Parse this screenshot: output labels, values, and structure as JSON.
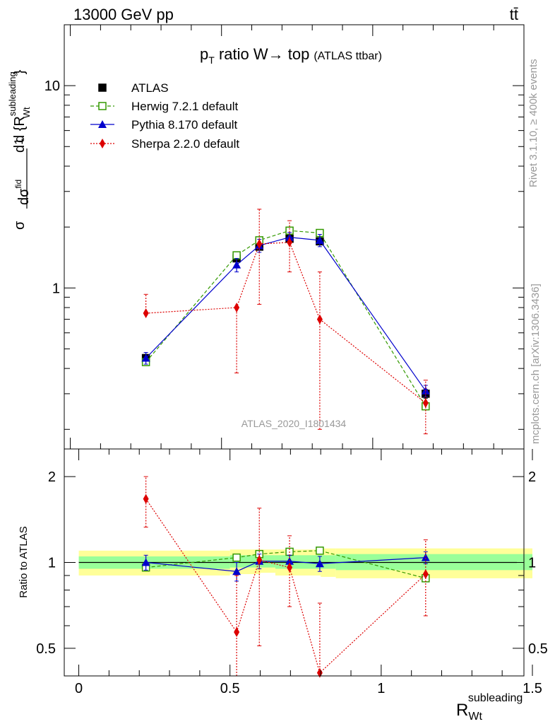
{
  "header": {
    "left": "13000 GeV pp",
    "right": "tt̄"
  },
  "side_text": {
    "rivet": "Rivet 3.1.10, ≥ 400k events",
    "mcplots": "mcplots.cern.ch [arXiv:1306.3436]"
  },
  "colors": {
    "atlas": "#000000",
    "herwig": "#339900",
    "pythia": "#0000cc",
    "sherpa": "#dd0000",
    "band_inner": "#99ff99",
    "band_outer": "#ffff99",
    "watermark": "#999999"
  },
  "chart_data": [
    {
      "type": "line",
      "title": "p_T ratio W→ top (ATLAS ttbar)",
      "title_main": "p",
      "title_sub": "T",
      "title_rest": " ratio W→ top",
      "title_small": "(ATLAS ttbar)",
      "analysis_label": "ATLAS_2020_I1801434",
      "ylabel": "1/σ dσ^fid / d{R_Wt^subleading}",
      "ylabel_parts": {
        "frac": "1",
        "sigma": "σ",
        "d": "d",
        "dsigma": "dσ",
        "fid": "fid",
        "dR": "d {R",
        "sub": "subleading",
        "wt": "Wt",
        "close": "}"
      },
      "yscale": "log",
      "ylim": [
        0.16,
        20
      ],
      "xlim": [
        -0.02,
        1.5
      ],
      "yticks": [
        {
          "v": 1,
          "label": "1"
        },
        {
          "v": 10,
          "label": "10"
        }
      ],
      "legend_position": "top-left",
      "series": [
        {
          "name": "ATLAS",
          "marker": "filled-square",
          "line": "none",
          "x": [
            0.25,
            0.55,
            0.625,
            0.725,
            0.825,
            1.175
          ],
          "y": [
            0.45,
            1.4,
            1.6,
            1.75,
            1.7,
            0.3
          ],
          "err": [
            0.02,
            0.05,
            0.06,
            0.06,
            0.06,
            0.015
          ]
        },
        {
          "name": "Herwig 7.2.1 default",
          "marker": "open-square",
          "line": "dashed",
          "x": [
            0.25,
            0.55,
            0.625,
            0.725,
            0.825,
            1.175
          ],
          "y": [
            0.43,
            1.45,
            1.72,
            1.92,
            1.87,
            0.26
          ],
          "err": [
            0.0,
            0.0,
            0.0,
            0.0,
            0.0,
            0.0
          ]
        },
        {
          "name": "Pythia 8.170 default",
          "marker": "filled-triangle",
          "line": "solid",
          "x": [
            0.25,
            0.55,
            0.625,
            0.725,
            0.825,
            1.175
          ],
          "y": [
            0.45,
            1.3,
            1.62,
            1.78,
            1.72,
            0.31
          ],
          "err": [
            0.03,
            0.1,
            0.12,
            0.1,
            0.12,
            0.02
          ]
        },
        {
          "name": "Sherpa 2.2.0 default",
          "marker": "filled-diamond",
          "line": "dotted",
          "x": [
            0.25,
            0.55,
            0.625,
            0.725,
            0.825,
            1.175
          ],
          "y": [
            0.75,
            0.8,
            1.65,
            1.68,
            0.7,
            0.27
          ],
          "yerr_lo": [
            0.75,
            0.38,
            0.83,
            1.2,
            0.2,
            0.19
          ],
          "yerr_hi": [
            0.93,
            0.8,
            2.45,
            2.15,
            1.2,
            0.35
          ]
        }
      ]
    },
    {
      "type": "line",
      "title": "",
      "xlabel": "R_Wt^subleading",
      "xlabel_main": "R",
      "xlabel_sub": "Wt",
      "xlabel_sup": "subleading",
      "ylabel": "Ratio to ATLAS",
      "yscale": "log",
      "ylim": [
        0.4,
        2.5
      ],
      "xlim": [
        -0.02,
        1.5
      ],
      "xticks": [
        {
          "v": 0,
          "label": "0"
        },
        {
          "v": 0.5,
          "label": "0.5"
        },
        {
          "v": 1,
          "label": "1"
        },
        {
          "v": 1.5,
          "label": "1.5"
        }
      ],
      "yticks": [
        {
          "v": 0.5,
          "label": "0.5"
        },
        {
          "v": 1,
          "label": "1"
        },
        {
          "v": 2,
          "label": "2"
        }
      ],
      "bands": [
        {
          "x0": 0.0,
          "x1": 0.5,
          "inner": [
            0.95,
            1.05
          ],
          "outer": [
            0.9,
            1.1
          ]
        },
        {
          "x0": 0.5,
          "x1": 0.6,
          "inner": [
            0.96,
            1.06
          ],
          "outer": [
            0.91,
            1.11
          ]
        },
        {
          "x0": 0.6,
          "x1": 0.65,
          "inner": [
            0.96,
            1.06
          ],
          "outer": [
            0.92,
            1.11
          ]
        },
        {
          "x0": 0.65,
          "x1": 0.8,
          "inner": [
            0.95,
            1.06
          ],
          "outer": [
            0.9,
            1.11
          ]
        },
        {
          "x0": 0.8,
          "x1": 0.85,
          "inner": [
            0.95,
            1.06
          ],
          "outer": [
            0.89,
            1.12
          ]
        },
        {
          "x0": 0.85,
          "x1": 1.5,
          "inner": [
            0.94,
            1.07
          ],
          "outer": [
            0.88,
            1.12
          ]
        }
      ],
      "series": [
        {
          "name": "Herwig 7.2.1 default",
          "x": [
            0.25,
            0.55,
            0.625,
            0.725,
            0.825,
            1.175
          ],
          "y": [
            0.96,
            1.04,
            1.07,
            1.09,
            1.1,
            0.88
          ]
        },
        {
          "name": "Pythia 8.170 default",
          "x": [
            0.25,
            0.55,
            0.625,
            0.725,
            0.825,
            1.175
          ],
          "y": [
            1.0,
            0.93,
            1.01,
            1.01,
            0.99,
            1.04
          ],
          "err": [
            0.06,
            0.07,
            0.06,
            0.05,
            0.06,
            0.05
          ]
        },
        {
          "name": "Sherpa 2.2.0 default",
          "x": [
            0.25,
            0.55,
            0.625,
            0.725,
            0.825,
            1.175
          ],
          "y": [
            1.67,
            0.57,
            1.02,
            0.96,
            0.41,
            0.91
          ],
          "yerr_lo": [
            1.33,
            0.3,
            0.51,
            0.7,
            0.2,
            0.65
          ],
          "yerr_hi": [
            2.0,
            0.9,
            1.55,
            1.24,
            0.72,
            1.2
          ]
        }
      ]
    }
  ]
}
